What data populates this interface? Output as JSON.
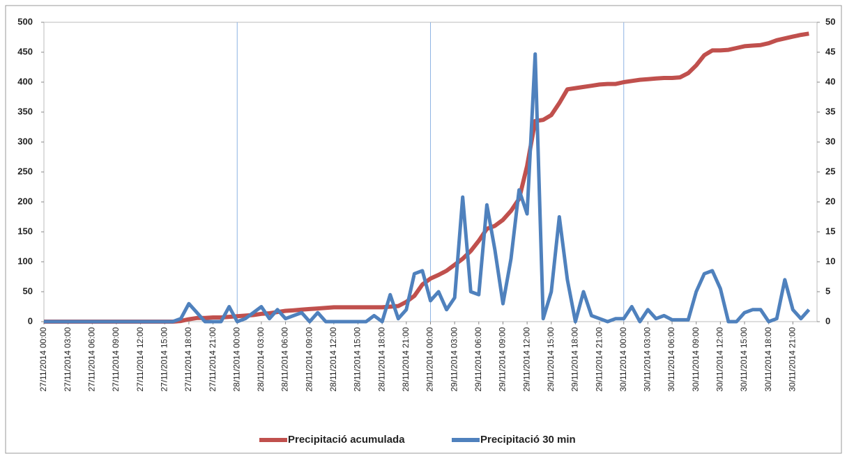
{
  "chart_data": {
    "type": "line",
    "categories": [
      "27/11/2014 00:00",
      null,
      null,
      "27/11/2014 03:00",
      null,
      null,
      "27/11/2014 06:00",
      null,
      null,
      "27/11/2014 09:00",
      null,
      null,
      "27/11/2014 12:00",
      null,
      null,
      "27/11/2014 15:00",
      null,
      null,
      "27/11/2014 18:00",
      null,
      null,
      "27/11/2014 21:00",
      null,
      null,
      "28/11/2014 00:00",
      null,
      null,
      "28/11/2014 03:00",
      null,
      null,
      "28/11/2014 06:00",
      null,
      null,
      "28/11/2014 09:00",
      null,
      null,
      "28/11/2014 12:00",
      null,
      null,
      "28/11/2014 15:00",
      null,
      null,
      "28/11/2014 18:00",
      null,
      null,
      "28/11/2014 21:00",
      null,
      null,
      "29/11/2014 00:00",
      null,
      null,
      "29/11/2014 03:00",
      null,
      null,
      "29/11/2014 06:00",
      null,
      null,
      "29/11/2014 09:00",
      null,
      null,
      "29/11/2014 12:00",
      null,
      null,
      "29/11/2014 15:00",
      null,
      null,
      "29/11/2014 18:00",
      null,
      null,
      "29/11/2014 21:00",
      null,
      null,
      "30/11/2014 00:00",
      null,
      null,
      "30/11/2014 03:00",
      null,
      null,
      "30/11/2014 06:00",
      null,
      null,
      "30/11/2014 09:00",
      null,
      null,
      "30/11/2014 12:00",
      null,
      null,
      "30/11/2014 15:00",
      null,
      null,
      "30/11/2014 18:00",
      null,
      null,
      "30/11/2014 21:00",
      null,
      null
    ],
    "series": [
      {
        "name": "Precipitació acumulada",
        "color": "#c0504d",
        "axis": "y",
        "values": [
          0,
          0,
          0,
          0,
          0,
          0,
          0,
          0,
          0,
          0,
          0,
          0,
          0,
          0,
          0,
          0,
          0,
          1,
          4,
          6,
          6,
          7,
          7,
          8,
          9,
          10,
          11,
          13,
          14,
          16,
          18,
          19,
          20,
          21,
          22,
          23,
          24,
          24,
          24,
          24,
          24,
          24,
          24,
          25,
          26,
          33,
          43,
          62,
          72,
          78,
          85,
          95,
          105,
          118,
          135,
          155,
          160,
          170,
          185,
          205,
          260,
          335,
          337,
          345,
          365,
          388,
          390,
          392,
          394,
          396,
          397,
          397,
          400,
          402,
          404,
          405,
          406,
          407,
          407,
          408,
          415,
          428,
          445,
          453,
          453,
          454,
          457,
          460,
          461,
          462,
          465,
          470,
          473,
          476,
          479,
          481
        ]
      },
      {
        "name": "Precipitació 30 min",
        "color": "#4f81bd",
        "axis": "y2",
        "values": [
          0,
          0,
          0,
          0,
          0,
          0,
          0,
          0,
          0,
          0,
          0,
          0,
          0,
          0,
          0,
          0,
          0,
          0.5,
          3,
          1.5,
          0,
          0,
          0,
          2.5,
          0,
          0.5,
          1.5,
          2.5,
          0.5,
          2,
          0.5,
          1,
          1.5,
          0,
          1.5,
          0,
          0,
          0,
          0,
          0,
          0,
          1,
          0,
          4.5,
          0.5,
          2,
          8,
          8.5,
          3.5,
          5,
          2,
          4,
          20.8,
          5,
          4.5,
          19.5,
          12,
          3,
          10.5,
          22,
          18,
          44.7,
          0.5,
          5,
          17.5,
          7,
          0,
          5,
          1,
          0.5,
          0,
          0.5,
          0.5,
          2.5,
          0,
          2,
          0.5,
          1,
          0.3,
          0.3,
          0.3,
          5,
          8,
          8.5,
          5.5,
          0,
          0,
          1.5,
          2,
          2,
          0,
          0.5,
          7,
          2,
          0.5,
          2
        ]
      }
    ],
    "ylim": [
      0,
      500
    ],
    "yticks": [
      0,
      50,
      100,
      150,
      200,
      250,
      300,
      350,
      400,
      450,
      500
    ],
    "y2lim": [
      0,
      50
    ],
    "y2ticks": [
      0,
      5,
      10,
      15,
      20,
      25,
      30,
      35,
      40,
      45,
      50
    ],
    "x_grid_interval": 24,
    "legend": "bottom"
  }
}
